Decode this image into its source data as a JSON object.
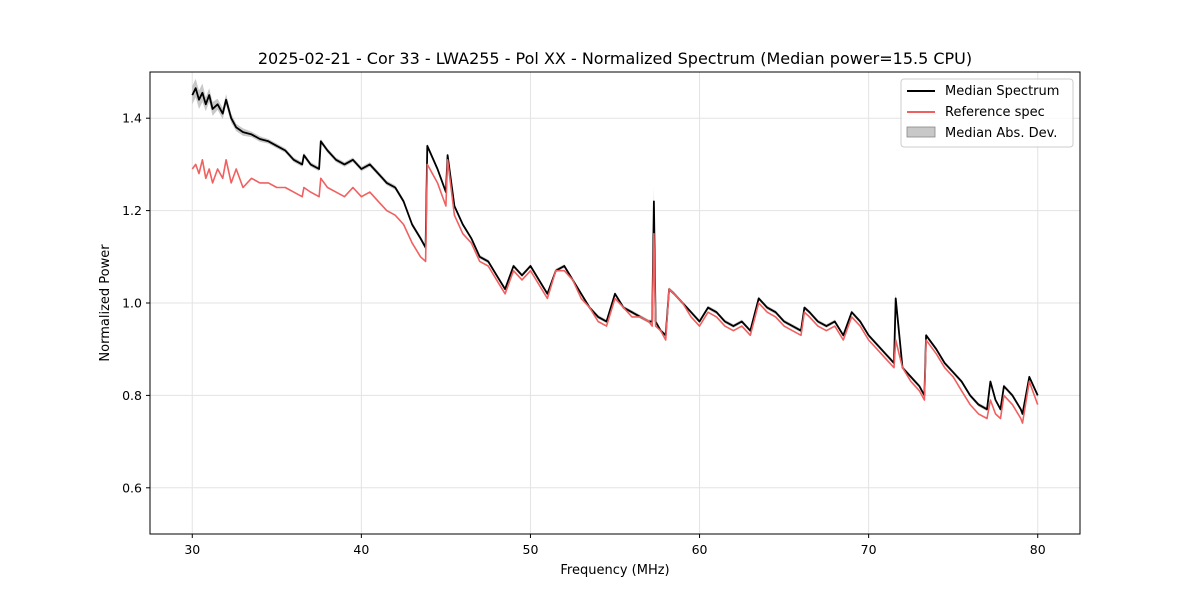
{
  "chart_data": {
    "type": "line",
    "title": "2025-02-21 - Cor 33 - LWA255 - Pol XX - Normalized Spectrum (Median power=15.5 CPU)",
    "xlabel": "Frequency (MHz)",
    "ylabel": "Normalized Power",
    "xlim": [
      27.5,
      82.5
    ],
    "ylim": [
      0.5,
      1.5
    ],
    "xticks": [
      30,
      40,
      50,
      60,
      70,
      80
    ],
    "yticks": [
      0.6,
      0.8,
      1.0,
      1.2,
      1.4
    ],
    "xtick_labels": [
      "30",
      "40",
      "50",
      "60",
      "70",
      "80"
    ],
    "ytick_labels": [
      "0.6",
      "0.8",
      "1.0",
      "1.2",
      "1.4"
    ],
    "grid": true,
    "legend_position": "top-right",
    "legend": [
      "Median Spectrum",
      "Reference spec",
      "Median Abs. Dev."
    ],
    "colors": {
      "median": "#000000",
      "reference": "#f06060",
      "mad": "#b0b0b0"
    },
    "series": [
      {
        "name": "Median Spectrum",
        "x": [
          30.0,
          30.2,
          30.4,
          30.6,
          30.8,
          31.0,
          31.2,
          31.5,
          31.8,
          32.0,
          32.3,
          32.6,
          33.0,
          33.5,
          34.0,
          34.5,
          35.0,
          35.5,
          36.0,
          36.5,
          36.6,
          37.0,
          37.5,
          37.6,
          38.0,
          38.5,
          39.0,
          39.5,
          40.0,
          40.5,
          41.0,
          41.5,
          42.0,
          42.5,
          43.0,
          43.5,
          43.8,
          43.9,
          44.5,
          45.0,
          45.1,
          45.5,
          46.0,
          46.5,
          47.0,
          47.5,
          48.0,
          48.5,
          49.0,
          49.5,
          50.0,
          50.5,
          51.0,
          51.5,
          52.0,
          52.5,
          53.0,
          53.5,
          54.0,
          54.5,
          55.0,
          55.5,
          56.0,
          56.5,
          57.0,
          57.2,
          57.3,
          57.4,
          57.7,
          58.0,
          58.2,
          58.5,
          59.0,
          59.5,
          60.0,
          60.5,
          61.0,
          61.5,
          62.0,
          62.5,
          63.0,
          63.5,
          64.0,
          64.5,
          65.0,
          65.5,
          66.0,
          66.2,
          66.5,
          67.0,
          67.5,
          68.0,
          68.5,
          69.0,
          69.5,
          70.0,
          70.5,
          71.0,
          71.5,
          71.6,
          72.0,
          72.5,
          73.0,
          73.3,
          73.4,
          74.0,
          74.5,
          75.0,
          75.5,
          76.0,
          76.5,
          77.0,
          77.2,
          77.5,
          77.8,
          78.0,
          78.5,
          79.0,
          79.1,
          79.5,
          80.0
        ],
        "values": [
          1.45,
          1.465,
          1.44,
          1.455,
          1.43,
          1.45,
          1.42,
          1.43,
          1.41,
          1.44,
          1.4,
          1.38,
          1.37,
          1.365,
          1.355,
          1.35,
          1.34,
          1.33,
          1.31,
          1.3,
          1.32,
          1.3,
          1.29,
          1.35,
          1.33,
          1.31,
          1.3,
          1.31,
          1.29,
          1.3,
          1.28,
          1.26,
          1.25,
          1.22,
          1.17,
          1.14,
          1.12,
          1.34,
          1.29,
          1.24,
          1.32,
          1.21,
          1.17,
          1.14,
          1.1,
          1.09,
          1.06,
          1.03,
          1.08,
          1.06,
          1.08,
          1.05,
          1.02,
          1.07,
          1.08,
          1.05,
          1.02,
          0.99,
          0.97,
          0.96,
          1.02,
          0.99,
          0.98,
          0.97,
          0.96,
          0.96,
          1.22,
          0.96,
          0.94,
          0.93,
          1.03,
          1.02,
          1.0,
          0.98,
          0.96,
          0.99,
          0.98,
          0.96,
          0.95,
          0.96,
          0.94,
          1.01,
          0.99,
          0.98,
          0.96,
          0.95,
          0.94,
          0.99,
          0.98,
          0.96,
          0.95,
          0.96,
          0.93,
          0.98,
          0.96,
          0.93,
          0.91,
          0.89,
          0.87,
          1.01,
          0.86,
          0.84,
          0.82,
          0.8,
          0.93,
          0.9,
          0.87,
          0.85,
          0.83,
          0.8,
          0.78,
          0.77,
          0.83,
          0.79,
          0.77,
          0.82,
          0.8,
          0.77,
          0.76,
          0.84,
          0.8
        ]
      },
      {
        "name": "Reference spec",
        "x": [
          30.0,
          30.2,
          30.4,
          30.6,
          30.8,
          31.0,
          31.2,
          31.5,
          31.8,
          32.0,
          32.3,
          32.6,
          33.0,
          33.5,
          34.0,
          34.5,
          35.0,
          35.5,
          36.0,
          36.5,
          36.6,
          37.0,
          37.5,
          37.6,
          38.0,
          38.5,
          39.0,
          39.5,
          40.0,
          40.5,
          41.0,
          41.5,
          42.0,
          42.5,
          43.0,
          43.5,
          43.8,
          43.9,
          44.5,
          45.0,
          45.1,
          45.5,
          46.0,
          46.5,
          47.0,
          47.5,
          48.0,
          48.5,
          49.0,
          49.5,
          50.0,
          50.5,
          51.0,
          51.5,
          52.0,
          52.5,
          53.0,
          53.5,
          54.0,
          54.5,
          55.0,
          55.5,
          56.0,
          56.5,
          57.0,
          57.2,
          57.3,
          57.4,
          57.7,
          58.0,
          58.2,
          58.5,
          59.0,
          59.5,
          60.0,
          60.5,
          61.0,
          61.5,
          62.0,
          62.5,
          63.0,
          63.5,
          64.0,
          64.5,
          65.0,
          65.5,
          66.0,
          66.2,
          66.5,
          67.0,
          67.5,
          68.0,
          68.5,
          69.0,
          69.5,
          70.0,
          70.5,
          71.0,
          71.5,
          71.6,
          72.0,
          72.5,
          73.0,
          73.3,
          73.4,
          74.0,
          74.5,
          75.0,
          75.5,
          76.0,
          76.5,
          77.0,
          77.2,
          77.5,
          77.8,
          78.0,
          78.5,
          79.0,
          79.1,
          79.5,
          80.0
        ],
        "values": [
          1.29,
          1.3,
          1.28,
          1.31,
          1.27,
          1.29,
          1.26,
          1.29,
          1.27,
          1.31,
          1.26,
          1.29,
          1.25,
          1.27,
          1.26,
          1.26,
          1.25,
          1.25,
          1.24,
          1.23,
          1.25,
          1.24,
          1.23,
          1.27,
          1.25,
          1.24,
          1.23,
          1.25,
          1.23,
          1.24,
          1.22,
          1.2,
          1.19,
          1.17,
          1.13,
          1.1,
          1.09,
          1.3,
          1.26,
          1.21,
          1.31,
          1.19,
          1.15,
          1.13,
          1.09,
          1.08,
          1.05,
          1.02,
          1.07,
          1.05,
          1.07,
          1.04,
          1.01,
          1.07,
          1.07,
          1.05,
          1.01,
          0.99,
          0.96,
          0.95,
          1.01,
          0.99,
          0.97,
          0.97,
          0.96,
          0.95,
          1.15,
          0.95,
          0.94,
          0.92,
          1.03,
          1.02,
          1.0,
          0.97,
          0.95,
          0.98,
          0.97,
          0.95,
          0.94,
          0.95,
          0.93,
          1.0,
          0.98,
          0.97,
          0.95,
          0.94,
          0.93,
          0.98,
          0.97,
          0.95,
          0.94,
          0.95,
          0.92,
          0.97,
          0.95,
          0.92,
          0.9,
          0.88,
          0.86,
          0.92,
          0.86,
          0.83,
          0.81,
          0.79,
          0.92,
          0.89,
          0.86,
          0.84,
          0.81,
          0.78,
          0.76,
          0.75,
          0.79,
          0.76,
          0.75,
          0.8,
          0.78,
          0.75,
          0.74,
          0.83,
          0.78
        ]
      }
    ],
    "mad_halfwidth": [
      0.02,
      0.02,
      0.02,
      0.02,
      0.015,
      0.015,
      0.015,
      0.012,
      0.012,
      0.012,
      0.01,
      0.008,
      0.008,
      0.006,
      0.006,
      0.005,
      0.005,
      0.005,
      0.005,
      0.005,
      0.005,
      0.005,
      0.005,
      0.005,
      0.005,
      0.005,
      0.005,
      0.005,
      0.005,
      0.005,
      0.005,
      0.005,
      0.005,
      0.005,
      0.005,
      0.005,
      0.005,
      0.005,
      0.005,
      0.005,
      0.005,
      0.004,
      0.004,
      0.004,
      0.004,
      0.004,
      0.004,
      0.004,
      0.004,
      0.004,
      0.004,
      0.004,
      0.004,
      0.004,
      0.004,
      0.004,
      0.004,
      0.004,
      0.004,
      0.004,
      0.004,
      0.004,
      0.004,
      0.004,
      0.004,
      0.004,
      0.03,
      0.004,
      0.004,
      0.004,
      0.004,
      0.004,
      0.004,
      0.004,
      0.004,
      0.004,
      0.004,
      0.004,
      0.004,
      0.004,
      0.004,
      0.004,
      0.004,
      0.004,
      0.004,
      0.004,
      0.004,
      0.004,
      0.004,
      0.004,
      0.004,
      0.004,
      0.004,
      0.004,
      0.004,
      0.004,
      0.004,
      0.004,
      0.004,
      0.01,
      0.004,
      0.004,
      0.004,
      0.004,
      0.004,
      0.004,
      0.004,
      0.004,
      0.004,
      0.004,
      0.004,
      0.004,
      0.004,
      0.004,
      0.004,
      0.004,
      0.004,
      0.004,
      0.004,
      0.004,
      0.004
    ]
  }
}
